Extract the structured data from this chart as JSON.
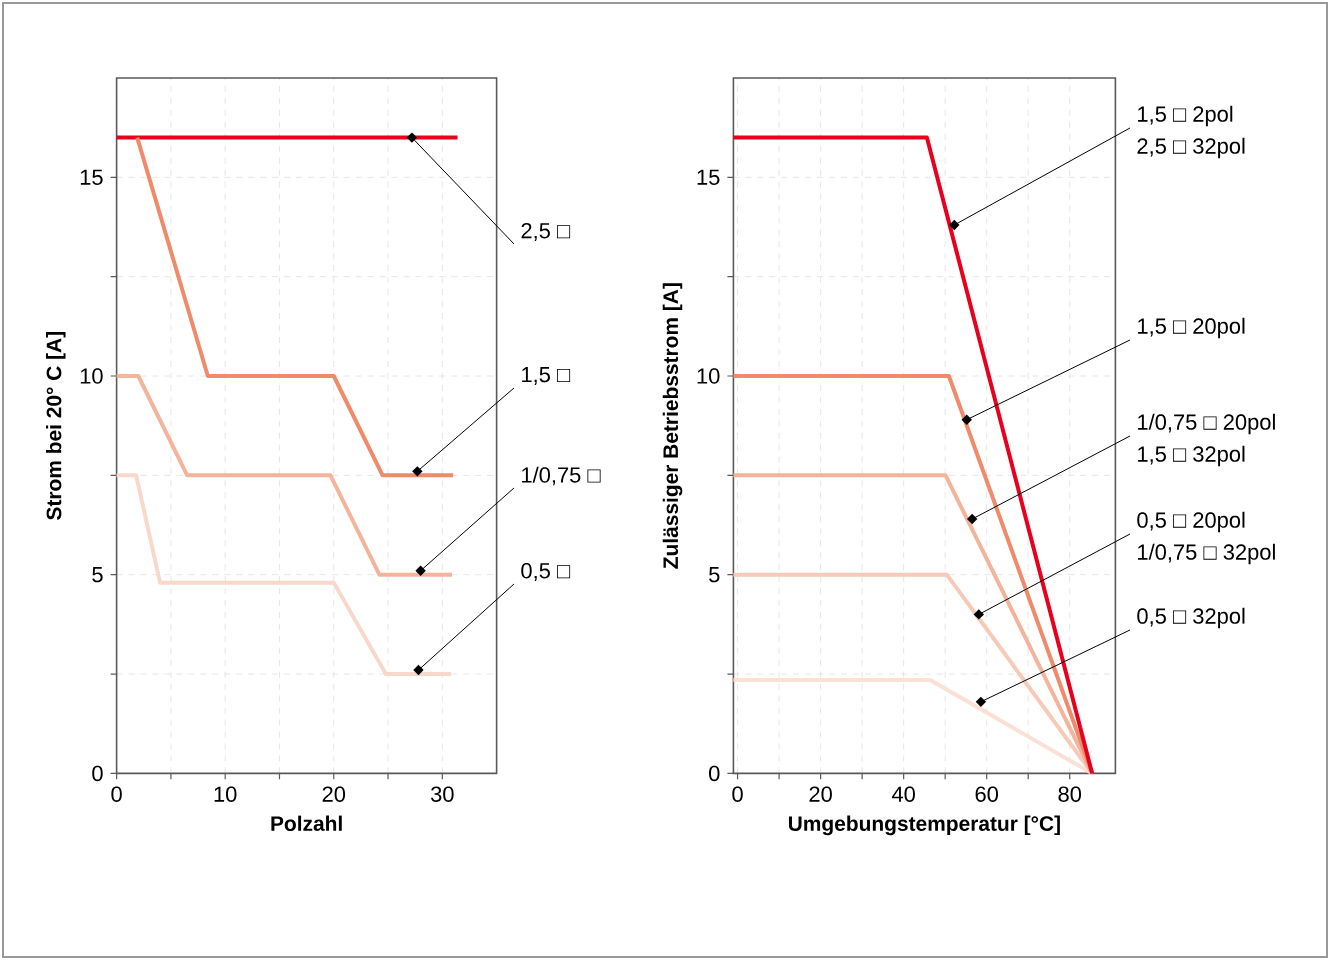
{
  "chart_data": [
    {
      "type": "line",
      "xlabel": "Polzahl",
      "ylabel": "Strom bei 20° C [A]",
      "xlim": [
        0,
        35
      ],
      "ylim": [
        0,
        17.5
      ],
      "xticks": [
        0,
        {
          "value": 5,
          "label": null
        },
        10,
        {
          "value": 15,
          "label": null
        },
        20,
        {
          "value": 25,
          "label": null
        },
        30
      ],
      "yticks": [
        0,
        {
          "value": 2.5,
          "label": null
        },
        5,
        {
          "value": 7.5,
          "label": null
        },
        10,
        {
          "value": 12.5,
          "label": null
        },
        15
      ],
      "grid": true,
      "line_style": "solid",
      "marker": "none",
      "series": [
        {
          "color": "#e8001c",
          "x": [
            0,
            31.4
          ],
          "values": [
            16,
            16
          ]
        },
        {
          "color": "#ef8a6a",
          "x": [
            1.9,
            8.4,
            20,
            24.5,
            31
          ],
          "values": [
            16,
            10,
            10,
            7.5,
            7.5
          ]
        },
        {
          "color": "#f4b49c",
          "x": [
            0,
            2,
            6.5,
            19.7,
            24.2,
            30.9
          ],
          "values": [
            10,
            10,
            7.5,
            7.5,
            5,
            5
          ]
        },
        {
          "color": "#f9d8cc",
          "x": [
            0,
            1.8,
            4,
            20,
            24.8,
            30.8
          ],
          "values": [
            7.5,
            7.5,
            4.8,
            4.8,
            2.5,
            2.5
          ]
        }
      ],
      "annotations": [
        {
          "text": "2,5 □",
          "x": 27.2,
          "y": 16
        },
        {
          "text": "1,5 □",
          "x": 27.7,
          "y": 7.6
        },
        {
          "text": "1/0,75 □",
          "x": 28,
          "y": 5.1
        },
        {
          "text": "0,5 □",
          "x": 27.8,
          "y": 2.6
        }
      ]
    },
    {
      "type": "line",
      "xlabel": "Umgebungstemperatur [°C]",
      "ylabel": "Zulässiger Betriebsstrom [A]",
      "xlim": [
        -1,
        91
      ],
      "ylim": [
        0,
        17.5
      ],
      "xticks": [
        0,
        {
          "value": 10,
          "label": null
        },
        20,
        {
          "value": 30,
          "label": null
        },
        40,
        {
          "value": 50,
          "label": null
        },
        60,
        {
          "value": 70,
          "label": null
        },
        80
      ],
      "yticks": [
        0,
        {
          "value": 2.5,
          "label": null
        },
        5,
        {
          "value": 7.5,
          "label": null
        },
        10,
        {
          "value": 12.5,
          "label": null
        },
        15
      ],
      "grid": true,
      "line_style": "solid",
      "marker": "none",
      "series": [
        {
          "color": "#fbe0d6",
          "x": [
            -1,
            46.4,
            85.4
          ],
          "values": [
            2.35,
            2.35,
            0
          ]
        },
        {
          "color": "#f8c9b8",
          "x": [
            -1,
            50.4,
            85.4
          ],
          "values": [
            5,
            5,
            0
          ]
        },
        {
          "color": "#f4b49c",
          "x": [
            -1,
            50.1,
            85.4
          ],
          "values": [
            7.5,
            7.5,
            0
          ]
        },
        {
          "color": "#ef8a6a",
          "x": [
            -1,
            50.9,
            85.4
          ],
          "values": [
            10,
            10,
            0
          ]
        },
        {
          "color": "#e8001c",
          "x": [
            -1,
            45.6,
            85.4
          ],
          "values": [
            16,
            16,
            0
          ]
        }
      ],
      "annotations": [
        {
          "text": "1,5 □ 2pol",
          "x": 52.2,
          "y": 13.8
        },
        "2,5 □ 32pol",
        {
          "text": "1,5 □ 20pol",
          "x": 55.2,
          "y": 8.9
        },
        {
          "text": "1/0,75 □ 20pol",
          "x": 56.5,
          "y": 6.4
        },
        "1,5 □ 32pol",
        {
          "text": "0,5 □ 20pol",
          "x": 58.1,
          "y": 4.0
        },
        "1/0,75 □ 32pol",
        {
          "text": "0,5 □ 32pol",
          "x": 58.6,
          "y": 1.8
        }
      ]
    }
  ]
}
